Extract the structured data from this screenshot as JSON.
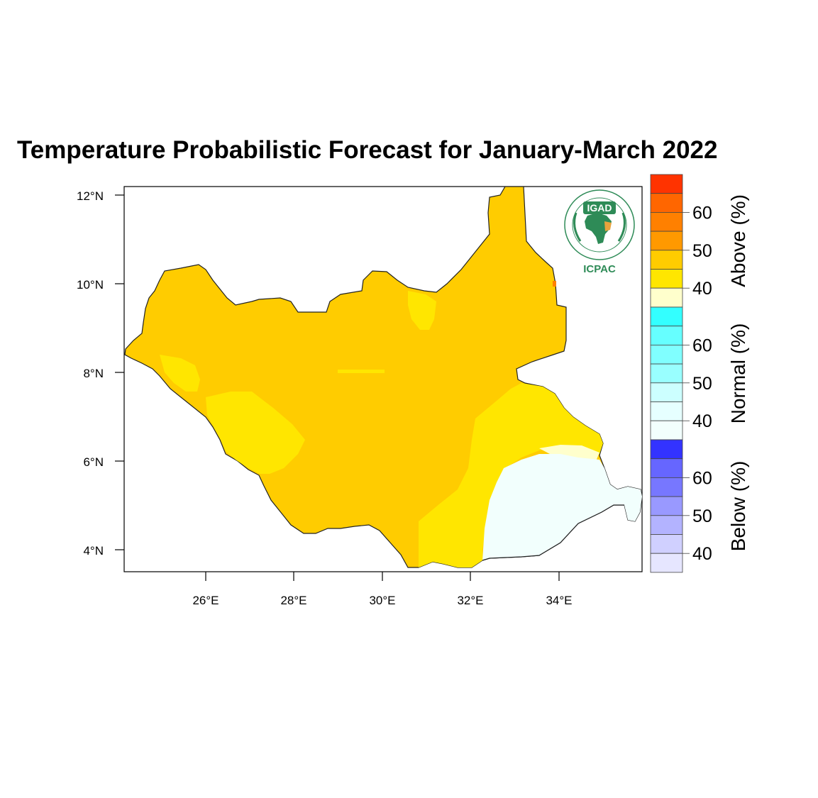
{
  "title": "Temperature Probabilistic Forecast for January-March 2022",
  "logo": {
    "top_text": "IGAD",
    "bottom_text": "ICPAC"
  },
  "axes": {
    "y_ticks": [
      "12°N",
      "10°N",
      "8°N",
      "6°N",
      "4°N"
    ],
    "x_ticks": [
      "26°E",
      "28°E",
      "30°E",
      "32°E",
      "34°E"
    ]
  },
  "colorbar": {
    "groups": [
      {
        "name": "Above (%)",
        "labels": [
          "60",
          "50",
          "40"
        ],
        "colors": [
          "#ff3300",
          "#ff6600",
          "#ff8000",
          "#ff9900",
          "#ffcc00",
          "#ffe600",
          "#ffffcc"
        ]
      },
      {
        "name": "Normal (%)",
        "labels": [
          "60",
          "50",
          "40"
        ],
        "colors": [
          "#33ffff",
          "#66ffff",
          "#80ffff",
          "#99ffff",
          "#ccffff",
          "#e6ffff",
          "#f2fffd"
        ]
      },
      {
        "name": "Below (%)",
        "labels": [
          "60",
          "50",
          "40"
        ],
        "colors": [
          "#3333ff",
          "#6666ff",
          "#7777ff",
          "#9999ff",
          "#b3b3ff",
          "#d0d0ff",
          "#e6e6ff"
        ]
      }
    ]
  },
  "chart_data": {
    "type": "heatmap",
    "title": "Temperature Probabilistic Forecast for January-March 2022",
    "x_range": [
      24.15,
      35.9
    ],
    "y_range": [
      3.5,
      12.2
    ],
    "regions": [
      {
        "category": "Above",
        "probability": "45-50%",
        "color": "#ffcc00",
        "area": "most of the country"
      },
      {
        "category": "Above",
        "probability": "40-45%",
        "color": "#ffe600",
        "area": "western and south-eastern parts"
      },
      {
        "category": "Normal",
        "probability": "35-40%",
        "color": "#f2fffd",
        "area": "far south-east"
      }
    ]
  }
}
